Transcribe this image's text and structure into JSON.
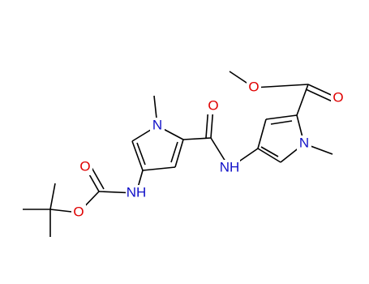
{
  "atoms": [
    {
      "label": "O"
    },
    {
      "label": "O"
    },
    {
      "label": "N"
    },
    {
      "label": "NH"
    },
    {
      "label": "O"
    },
    {
      "label": "N"
    },
    {
      "label": "NH"
    },
    {
      "label": "O"
    },
    {
      "label": "O"
    }
  ]
}
